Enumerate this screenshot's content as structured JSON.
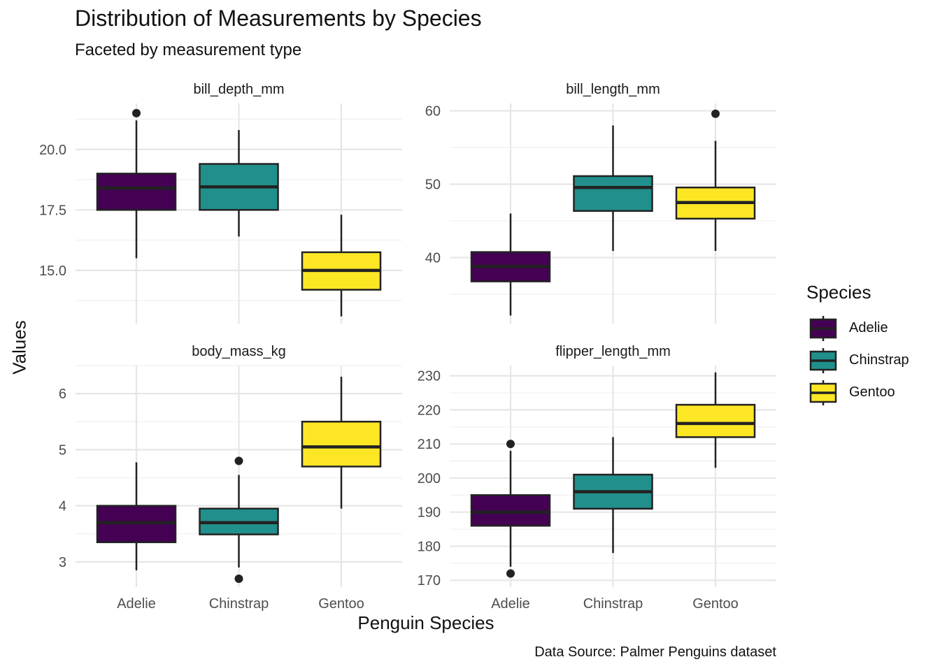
{
  "chart_data": {
    "type": "boxplot",
    "title": "Distribution of Measurements by Species",
    "subtitle": "Faceted by measurement type",
    "xlabel": "Penguin Species",
    "ylabel": "Values",
    "caption": "Data Source: Palmer Penguins dataset",
    "legend": {
      "title": "Species",
      "position": "right",
      "entries": [
        {
          "name": "Adelie",
          "color": "#440154"
        },
        {
          "name": "Chinstrap",
          "color": "#21908C"
        },
        {
          "name": "Gentoo",
          "color": "#FDE725"
        }
      ]
    },
    "categories": [
      "Adelie",
      "Chinstrap",
      "Gentoo"
    ],
    "grid": true,
    "facets": [
      {
        "name": "bill_depth_mm",
        "ylim": [
          12.8,
          21.9
        ],
        "yticks": [
          15.0,
          17.5,
          20.0
        ],
        "ytick_labels": [
          "15.0",
          "17.5",
          "20.0"
        ],
        "boxes": [
          {
            "category": "Adelie",
            "min": 15.5,
            "q1": 17.5,
            "median": 18.4,
            "q3": 19.0,
            "max": 21.2,
            "outliers": [
              21.5
            ]
          },
          {
            "category": "Chinstrap",
            "min": 16.4,
            "q1": 17.5,
            "median": 18.45,
            "q3": 19.4,
            "max": 20.8,
            "outliers": []
          },
          {
            "category": "Gentoo",
            "min": 13.1,
            "q1": 14.2,
            "median": 15.0,
            "q3": 15.75,
            "max": 17.3,
            "outliers": []
          }
        ]
      },
      {
        "name": "bill_length_mm",
        "ylim": [
          31.0,
          61.0
        ],
        "yticks": [
          40,
          50,
          60
        ],
        "ytick_labels": [
          "40",
          "50",
          "60"
        ],
        "boxes": [
          {
            "category": "Adelie",
            "min": 32.1,
            "q1": 36.75,
            "median": 38.8,
            "q3": 40.75,
            "max": 46.0,
            "outliers": []
          },
          {
            "category": "Chinstrap",
            "min": 40.9,
            "q1": 46.35,
            "median": 49.55,
            "q3": 51.1,
            "max": 58.0,
            "outliers": []
          },
          {
            "category": "Gentoo",
            "min": 40.9,
            "q1": 45.3,
            "median": 47.5,
            "q3": 49.55,
            "max": 55.9,
            "outliers": [
              59.6
            ]
          }
        ]
      },
      {
        "name": "body_mass_kg",
        "ylim": [
          2.55,
          6.5
        ],
        "yticks": [
          3,
          4,
          5,
          6
        ],
        "ytick_labels": [
          "3",
          "4",
          "5",
          "6"
        ],
        "boxes": [
          {
            "category": "Adelie",
            "min": 2.85,
            "q1": 3.35,
            "median": 3.7,
            "q3": 4.0,
            "max": 4.775,
            "outliers": []
          },
          {
            "category": "Chinstrap",
            "min": 2.9,
            "q1": 3.49,
            "median": 3.7,
            "q3": 3.95,
            "max": 4.55,
            "outliers": [
              4.8,
              2.7
            ]
          },
          {
            "category": "Gentoo",
            "min": 3.95,
            "q1": 4.7,
            "median": 5.05,
            "q3": 5.5,
            "max": 6.3,
            "outliers": []
          }
        ]
      },
      {
        "name": "flipper_length_mm",
        "ylim": [
          168.0,
          233.0
        ],
        "yticks": [
          170,
          180,
          190,
          200,
          210,
          220,
          230
        ],
        "ytick_labels": [
          "170",
          "180",
          "190",
          "200",
          "210",
          "220",
          "230"
        ],
        "boxes": [
          {
            "category": "Adelie",
            "min": 174,
            "q1": 186,
            "median": 190,
            "q3": 195,
            "max": 208,
            "outliers": [
              210,
              172
            ]
          },
          {
            "category": "Chinstrap",
            "min": 178,
            "q1": 191,
            "median": 196,
            "q3": 201,
            "max": 212,
            "outliers": []
          },
          {
            "category": "Gentoo",
            "min": 203,
            "q1": 212,
            "median": 216,
            "q3": 221.5,
            "max": 231,
            "outliers": []
          }
        ]
      }
    ]
  }
}
